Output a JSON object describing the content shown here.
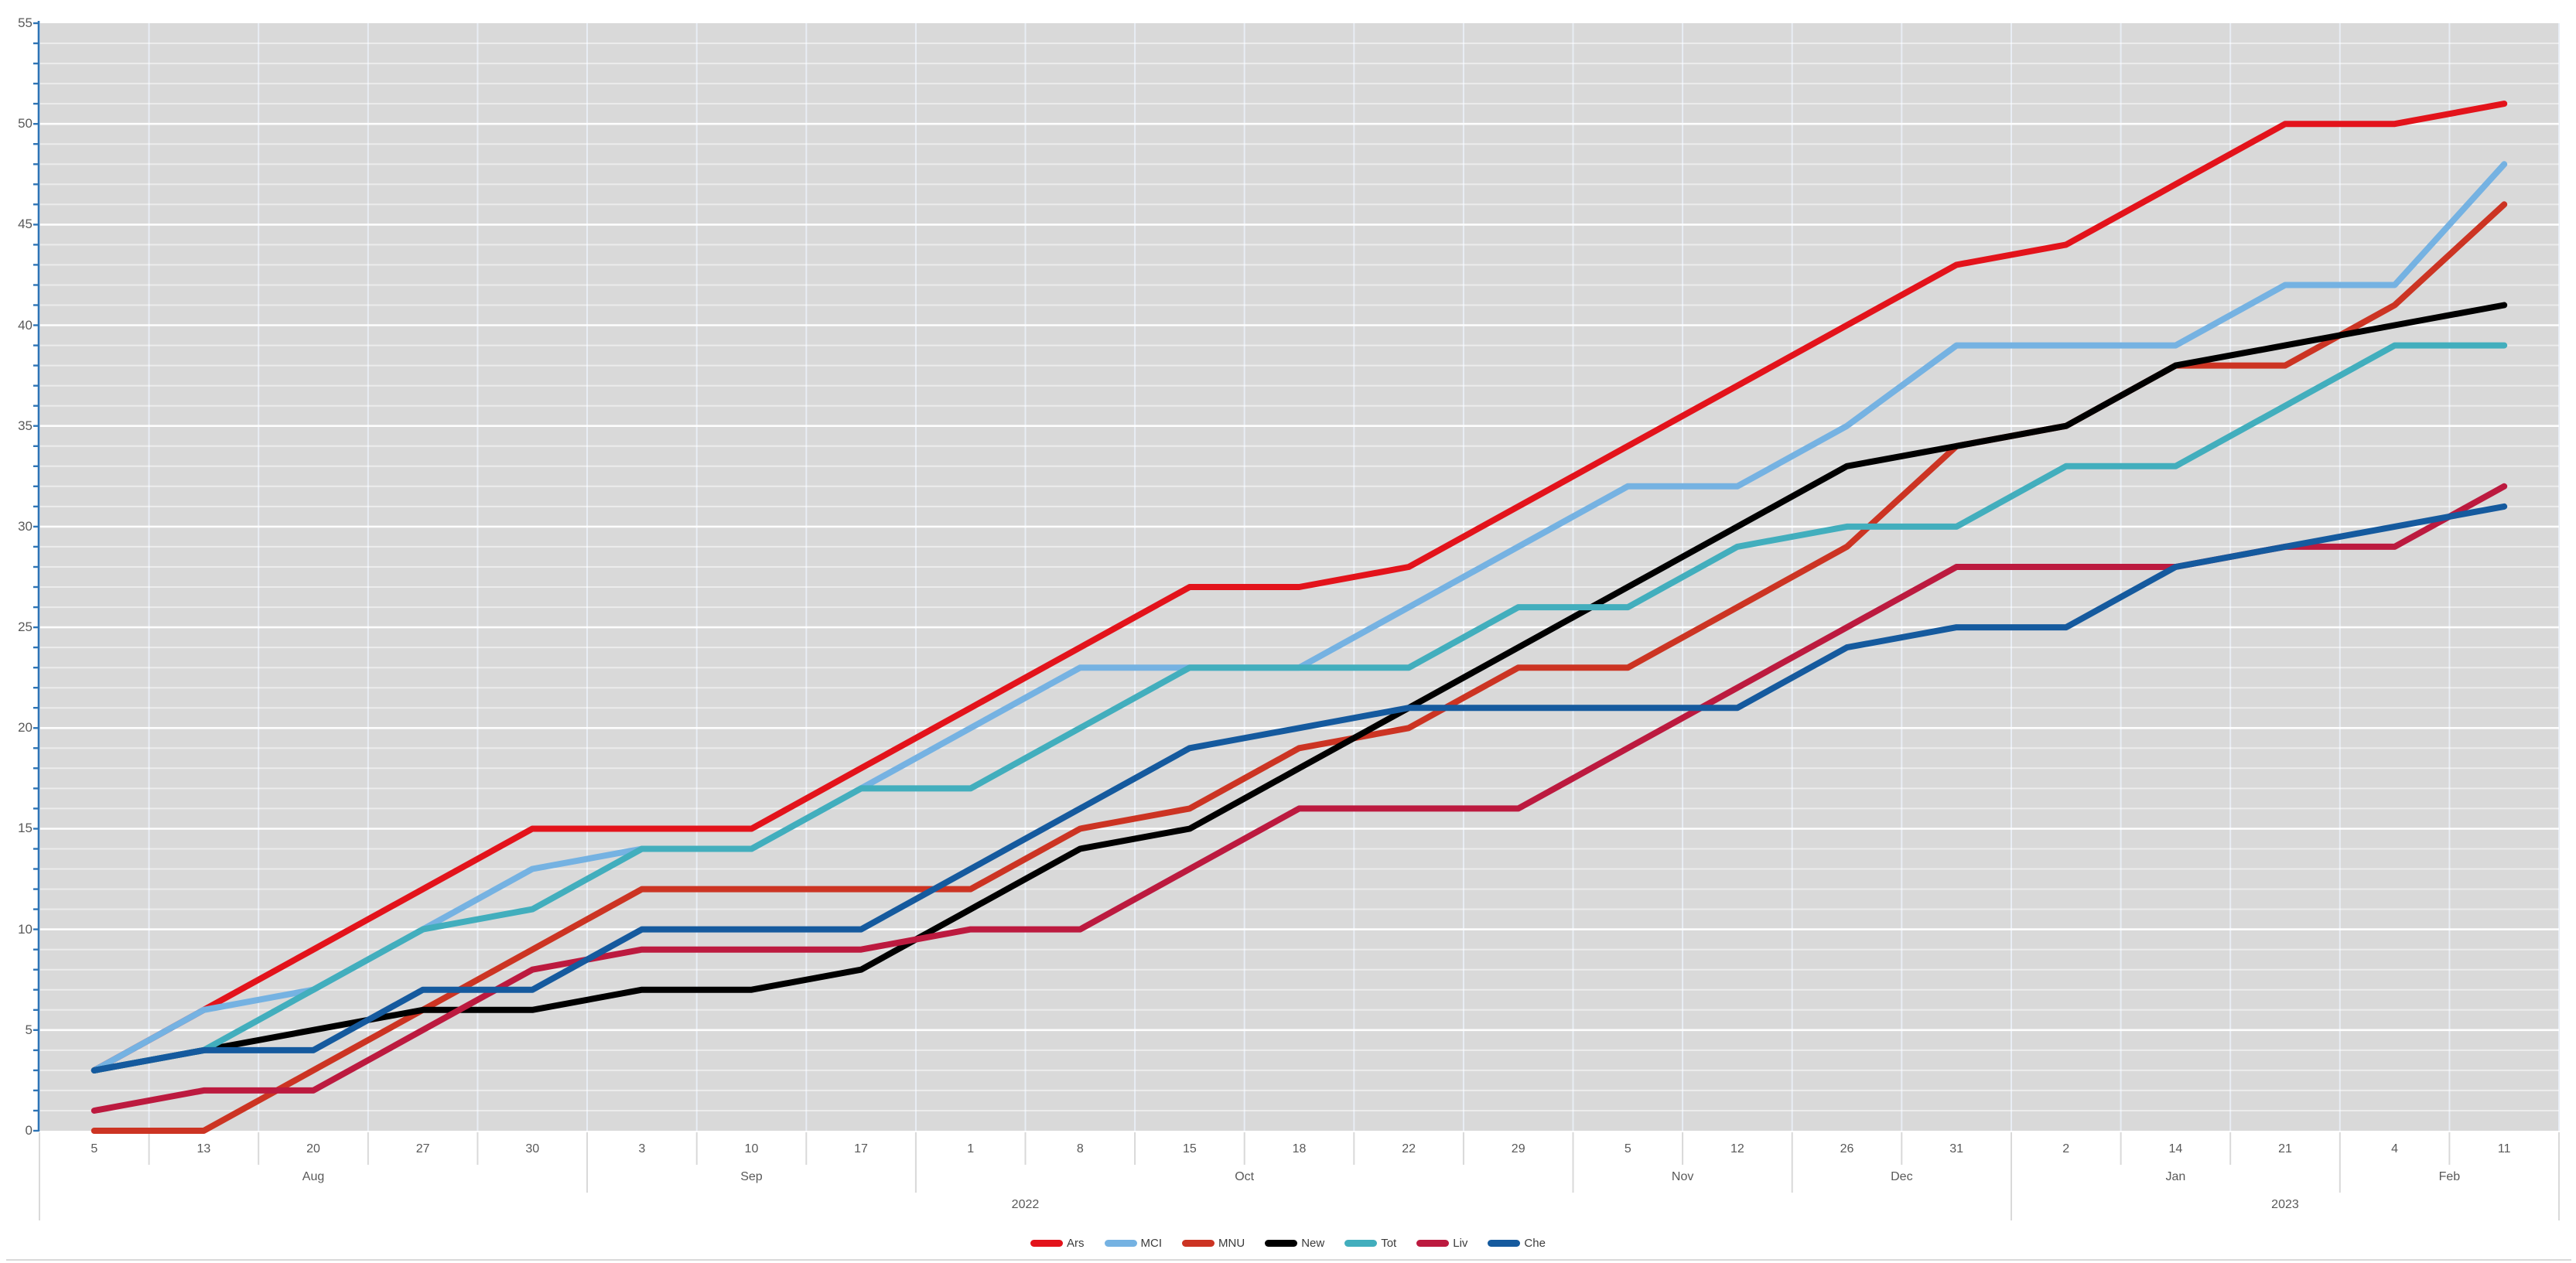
{
  "window": {
    "background": "#ffffff",
    "bottom_border_color": "#d9d9d9"
  },
  "chart_data": {
    "type": "line",
    "title": "",
    "xlabel": "",
    "ylabel": "",
    "ylim": [
      0,
      55
    ],
    "y_major_interval": 5,
    "y_minor_interval": 1,
    "grid": "on",
    "legend_position": "bottom",
    "plot_background": "#d9d9d9",
    "major_gridline_color": "rgba(255,255,255,0.95)",
    "minor_gridline_color": "rgba(255,255,255,0.5)",
    "vertical_gridline_color": "rgba(233,238,246,0.95)",
    "axis_line_color": "#2e74b5",
    "tick_label_color": "#595959",
    "y_tick_labels": [
      "0",
      "5",
      "10",
      "15",
      "20",
      "25",
      "30",
      "35",
      "40",
      "45",
      "50",
      "55"
    ],
    "x_categories": [
      "5",
      "13",
      "20",
      "27",
      "30",
      "3",
      "10",
      "17",
      "1",
      "8",
      "15",
      "18",
      "22",
      "29",
      "5",
      "12",
      "26",
      "31",
      "2",
      "14",
      "21",
      "4",
      "11"
    ],
    "month_groups": [
      {
        "label": "Aug",
        "start_col": 0,
        "end_col": 4
      },
      {
        "label": "Sep",
        "start_col": 5,
        "end_col": 7
      },
      {
        "label": "Oct",
        "start_col": 8,
        "end_col": 13
      },
      {
        "label": "Nov",
        "start_col": 14,
        "end_col": 15
      },
      {
        "label": "Dec",
        "start_col": 16,
        "end_col": 17
      },
      {
        "label": "Jan",
        "start_col": 18,
        "end_col": 20
      },
      {
        "label": "Feb",
        "start_col": 21,
        "end_col": 22
      }
    ],
    "year_groups": [
      {
        "label": "2022",
        "start_col": 0,
        "end_col": 17
      },
      {
        "label": "2023",
        "start_col": 18,
        "end_col": 22
      }
    ],
    "series": [
      {
        "name": "Ars",
        "color": "#e3131b",
        "values": [
          3,
          6,
          9,
          12,
          15,
          15,
          15,
          18,
          21,
          24,
          27,
          27,
          28,
          31,
          34,
          37,
          40,
          43,
          44,
          47,
          50,
          50,
          51
        ]
      },
      {
        "name": "MCI",
        "color": "#75b2e2",
        "values": [
          3,
          6,
          7,
          10,
          13,
          14,
          14,
          17,
          20,
          23,
          23,
          23,
          26,
          29,
          32,
          32,
          35,
          39,
          39,
          39,
          42,
          42,
          48
        ]
      },
      {
        "name": "MNU",
        "color": "#cc3423",
        "values": [
          0,
          0,
          3,
          6,
          9,
          12,
          12,
          12,
          12,
          15,
          16,
          19,
          20,
          23,
          23,
          26,
          29,
          34,
          35,
          38,
          38,
          41,
          46
        ]
      },
      {
        "name": "New",
        "color": "#000000",
        "values": [
          3,
          4,
          5,
          6,
          6,
          7,
          7,
          8,
          11,
          14,
          15,
          18,
          21,
          24,
          27,
          30,
          33,
          34,
          35,
          38,
          39,
          40,
          41
        ]
      },
      {
        "name": "Tot",
        "color": "#42aebd",
        "values": [
          3,
          4,
          7,
          10,
          11,
          14,
          14,
          17,
          17,
          20,
          23,
          23,
          23,
          26,
          26,
          29,
          30,
          30,
          33,
          33,
          36,
          39,
          39
        ]
      },
      {
        "name": "Liv",
        "color": "#bc1a3f",
        "values": [
          1,
          2,
          2,
          5,
          8,
          9,
          9,
          9,
          10,
          10,
          13,
          16,
          16,
          16,
          19,
          22,
          25,
          28,
          28,
          28,
          29,
          29,
          32
        ]
      },
      {
        "name": "Che",
        "color": "#155a9e",
        "values": [
          3,
          4,
          4,
          7,
          7,
          10,
          10,
          10,
          13,
          16,
          19,
          20,
          21,
          21,
          21,
          21,
          24,
          25,
          25,
          28,
          29,
          30,
          31
        ]
      }
    ]
  }
}
